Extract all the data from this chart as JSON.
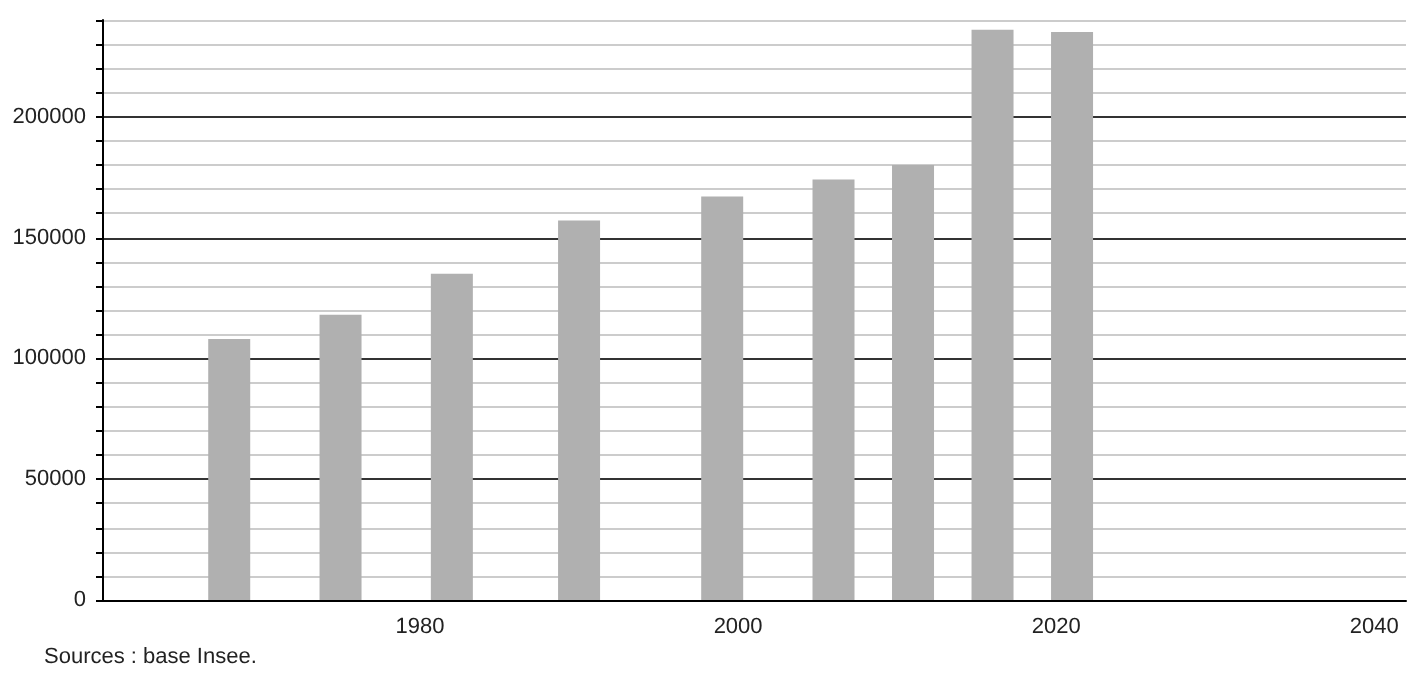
{
  "chart_data": {
    "type": "bar",
    "x": [
      1968,
      1975,
      1982,
      1990,
      1999,
      2006,
      2011,
      2016,
      2021
    ],
    "values": [
      108000,
      118000,
      135000,
      157000,
      167000,
      174000,
      180000,
      236000,
      235000
    ],
    "color": "#b0b0b0",
    "xlim": [
      1960,
      2042
    ],
    "xticks": [
      1980,
      2000,
      2020,
      2040
    ],
    "ylim": [
      0,
      240000
    ],
    "yticks": [
      0,
      {
        "value": 10000,
        "label": null
      },
      {
        "value": 20000,
        "label": null
      },
      {
        "value": 30000,
        "label": null
      },
      {
        "value": 40000,
        "label": null
      },
      50000,
      {
        "value": 60000,
        "label": null
      },
      {
        "value": 70000,
        "label": null
      },
      {
        "value": 80000,
        "label": null
      },
      {
        "value": 90000,
        "label": null
      },
      100000,
      {
        "value": 110000,
        "label": null
      },
      {
        "value": 120000,
        "label": null
      },
      {
        "value": 130000,
        "label": null
      },
      {
        "value": 140000,
        "label": null
      },
      150000,
      {
        "value": 160000,
        "label": null
      },
      {
        "value": 170000,
        "label": null
      },
      {
        "value": 180000,
        "label": null
      },
      {
        "value": 190000,
        "label": null
      },
      200000,
      {
        "value": 210000,
        "label": null
      },
      {
        "value": 220000,
        "label": null
      },
      {
        "value": 230000,
        "label": null
      },
      {
        "value": 240000,
        "label": null
      }
    ],
    "grid": "y",
    "annotations": [
      "Sources : base Insee."
    ]
  }
}
